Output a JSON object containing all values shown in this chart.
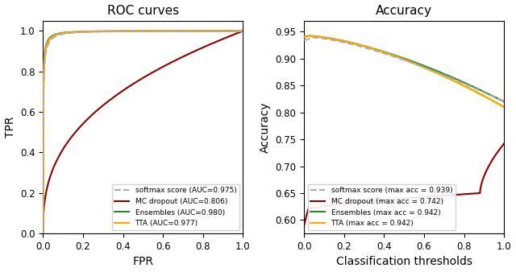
{
  "roc_title": "ROC curves",
  "acc_title": "Accuracy",
  "roc_xlabel": "FPR",
  "roc_ylabel": "TPR",
  "acc_xlabel": "Classification thresholds",
  "acc_ylabel": "Accuracy",
  "colors": {
    "softmax": "#aaaaaa",
    "mc_dropout": "#8b0000",
    "ensembles": "#228B22",
    "tta": "#FFA500"
  },
  "roc_legend": [
    "softmax score (AUC=0.975)",
    "MC dropout (AUC=0.806)",
    "Ensembles (AUC=0.980)",
    "TTA (AUC=0.977)"
  ],
  "acc_legend": [
    "softmax score (max acc = 0.939)",
    "MC dropout (max acc = 0.742)",
    "Ensembles (max acc = 0.942)",
    "TTA (max acc = 0.942)"
  ],
  "roc_ylim": [
    0,
    1.05
  ],
  "acc_ylim": [
    0.575,
    0.97
  ]
}
